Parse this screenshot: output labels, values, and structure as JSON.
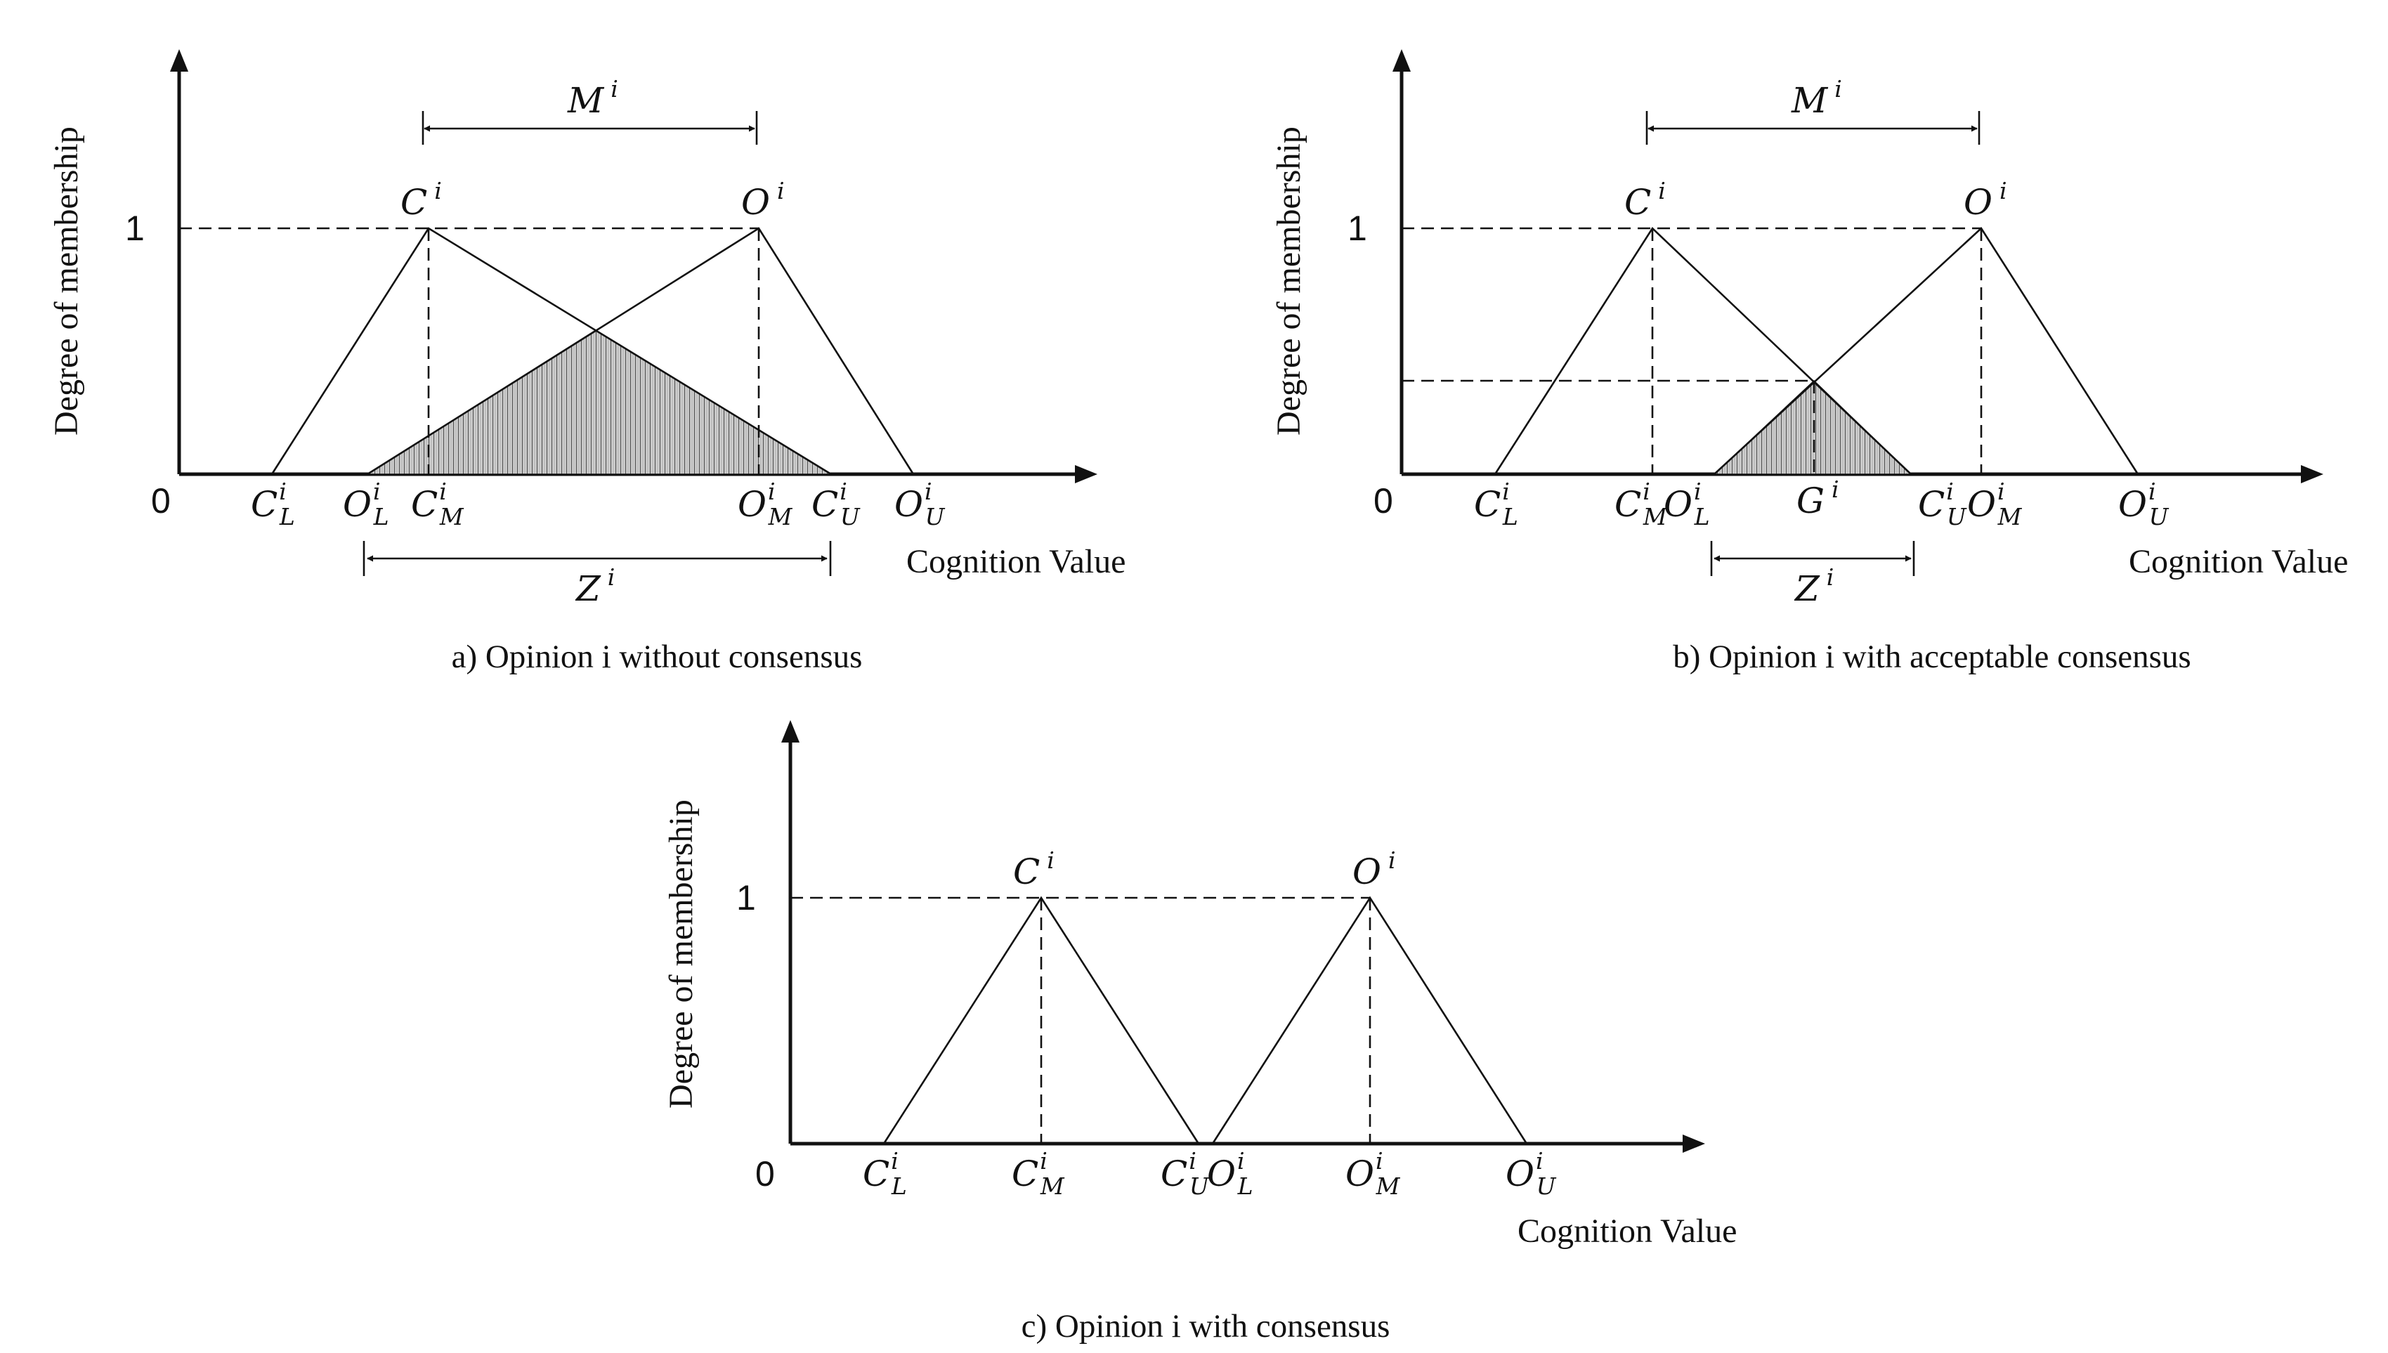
{
  "panels": [
    {
      "id": "a",
      "caption": "a) Opinion i without consensus",
      "y_axis_label": "Degree of membership",
      "x_axis_label": "Cognition Value",
      "origin_label": "0",
      "y_tick_label": "1",
      "peak_labels": {
        "c": {
          "base": "C",
          "sup": "i"
        },
        "o": {
          "base": "O",
          "sup": "i"
        }
      },
      "m_label": {
        "base": "M",
        "sup": "i"
      },
      "z_label": {
        "base": "Z",
        "sup": "i"
      },
      "x_ticks": [
        {
          "base": "C",
          "sup": "i",
          "sub": "L"
        },
        {
          "base": "O",
          "sup": "i",
          "sub": "L"
        },
        {
          "base": "C",
          "sup": "i",
          "sub": "M"
        },
        {
          "base": "O",
          "sup": "i",
          "sub": "M"
        },
        {
          "base": "C",
          "sup": "i",
          "sub": "U"
        },
        {
          "base": "O",
          "sup": "i",
          "sub": "U"
        }
      ]
    },
    {
      "id": "b",
      "caption": "b) Opinion i with acceptable consensus",
      "y_axis_label": "Degree of membership",
      "x_axis_label": "Cognition Value",
      "origin_label": "0",
      "y_tick_label": "1",
      "peak_labels": {
        "c": {
          "base": "C",
          "sup": "i"
        },
        "o": {
          "base": "O",
          "sup": "i"
        }
      },
      "m_label": {
        "base": "M",
        "sup": "i"
      },
      "z_label": {
        "base": "Z",
        "sup": "i"
      },
      "g_label": {
        "base": "G",
        "sup": "i"
      },
      "x_ticks": [
        {
          "base": "C",
          "sup": "i",
          "sub": "L"
        },
        {
          "base": "C",
          "sup": "i",
          "sub": "M"
        },
        {
          "base": "O",
          "sup": "i",
          "sub": "L"
        },
        {
          "base": "C",
          "sup": "i",
          "sub": "U"
        },
        {
          "base": "O",
          "sup": "i",
          "sub": "M"
        },
        {
          "base": "O",
          "sup": "i",
          "sub": "U"
        }
      ]
    },
    {
      "id": "c",
      "caption": "c) Opinion i with consensus",
      "y_axis_label": "Degree of membership",
      "x_axis_label": "Cognition Value",
      "origin_label": "0",
      "y_tick_label": "1",
      "peak_labels": {
        "c": {
          "base": "C",
          "sup": "i"
        },
        "o": {
          "base": "O",
          "sup": "i"
        }
      },
      "x_ticks": [
        {
          "base": "C",
          "sup": "i",
          "sub": "L"
        },
        {
          "base": "C",
          "sup": "i",
          "sub": "M"
        },
        {
          "base": "C",
          "sup": "i",
          "sub": "U"
        },
        {
          "base": "O",
          "sup": "i",
          "sub": "L"
        },
        {
          "base": "O",
          "sup": "i",
          "sub": "M"
        },
        {
          "base": "O",
          "sup": "i",
          "sub": "U"
        }
      ]
    }
  ]
}
